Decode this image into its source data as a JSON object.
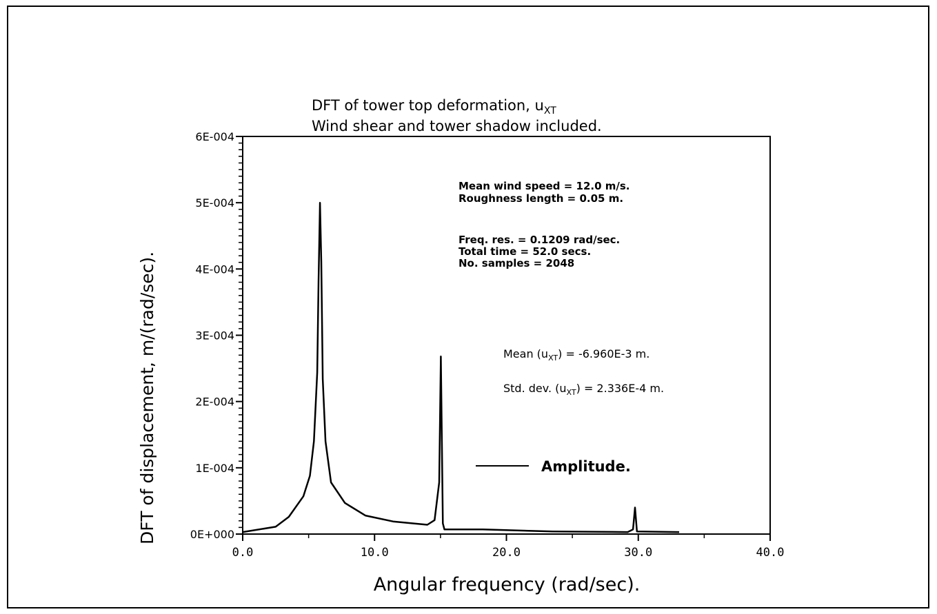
{
  "chart_data": {
    "type": "line",
    "title": "DFT of tower top deformation, u",
    "title_subscript": "XT",
    "subtitle": "Wind shear and tower shadow included.",
    "xlabel": "Angular frequency (rad/sec).",
    "ylabel": "DFT of displacement, m/(rad/sec).",
    "xlim": [
      0,
      40
    ],
    "ylim": [
      0,
      0.0006
    ],
    "x_ticks": [
      "0.0",
      "10.0",
      "20.0",
      "30.0",
      "40.0"
    ],
    "y_ticks": [
      "0E+000",
      "1E-004",
      "2E-004",
      "3E-004",
      "4E-004",
      "5E-004",
      "6E-004"
    ],
    "grid": false,
    "legend_position": "lower-right",
    "series": [
      {
        "name": "Amplitude.",
        "color": "#000000",
        "x": [
          0,
          2.5,
          3.5,
          4.6,
          5.1,
          5.4,
          5.65,
          5.75,
          5.86,
          5.96,
          6.07,
          6.28,
          6.7,
          7.75,
          9.3,
          11.4,
          14.0,
          14.55,
          14.9,
          15.03,
          15.18,
          15.3,
          18.2,
          23.5,
          29.2,
          29.6,
          29.75,
          29.9,
          33.1
        ],
        "y": [
          3e-06,
          1.1e-05,
          2.6e-05,
          5.7e-05,
          8.8e-05,
          0.00014,
          0.000244,
          0.00038,
          0.0005,
          0.00041,
          0.000234,
          0.00014,
          7.8e-05,
          4.7e-05,
          2.8e-05,
          1.9e-05,
          1.4e-05,
          2.1e-05,
          7.8e-05,
          0.000268,
          1.6e-05,
          7e-06,
          7e-06,
          4e-06,
          3e-06,
          7e-06,
          4e-05,
          4e-06,
          3e-06
        ]
      }
    ],
    "annotations": {
      "wind": [
        "Mean wind speed = 12.0 m/s.",
        "Roughness length = 0.05 m."
      ],
      "sampling": [
        "Freq. res. = 0.1209 rad/sec.",
        "Total time = 52.0 secs.",
        "No. samples = 2048"
      ],
      "mean_label": "Mean (u",
      "mean_value": ") = -6.960E-3 m.",
      "std_label": "Std. dev. (u",
      "std_value": ") = 2.336E-4 m.",
      "subscript": "XT"
    }
  }
}
